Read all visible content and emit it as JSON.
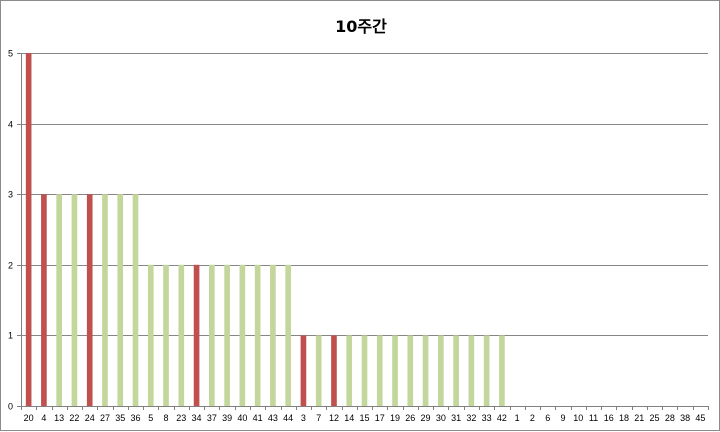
{
  "chart_data": {
    "type": "bar",
    "title": "10주간",
    "xlabel": "",
    "ylabel": "",
    "ylim": [
      0,
      5
    ],
    "yticks": [
      0,
      1,
      2,
      3,
      4,
      5
    ],
    "grid": true,
    "legend": "none",
    "categories": [
      "20",
      "4",
      "13",
      "22",
      "24",
      "27",
      "35",
      "36",
      "5",
      "8",
      "23",
      "34",
      "37",
      "39",
      "40",
      "41",
      "43",
      "44",
      "3",
      "7",
      "12",
      "14",
      "15",
      "17",
      "19",
      "26",
      "29",
      "30",
      "31",
      "32",
      "33",
      "42",
      "1",
      "2",
      "6",
      "9",
      "10",
      "11",
      "16",
      "18",
      "21",
      "25",
      "28",
      "38",
      "45"
    ],
    "values": [
      5,
      3,
      3,
      3,
      3,
      3,
      3,
      3,
      2,
      2,
      2,
      2,
      2,
      2,
      2,
      2,
      2,
      2,
      1,
      1,
      1,
      1,
      1,
      1,
      1,
      1,
      1,
      1,
      1,
      1,
      1,
      1,
      0,
      0,
      0,
      0,
      0,
      0,
      0,
      0,
      0,
      0,
      0,
      0,
      0
    ],
    "highlighted": [
      "20",
      "4",
      "24",
      "34",
      "3",
      "12"
    ],
    "colors": {
      "highlight": "#c0504d",
      "default": "#c3d69b"
    }
  }
}
